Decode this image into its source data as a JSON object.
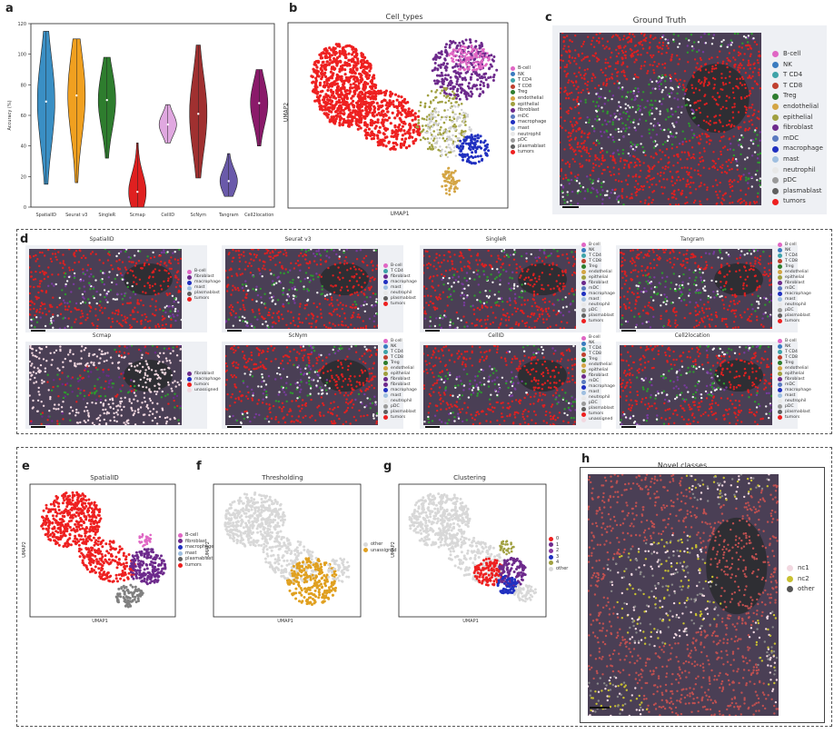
{
  "panels": {
    "a": "a",
    "b": "b",
    "c": "c",
    "d": "d",
    "e": "e",
    "f": "f",
    "g": "g",
    "h": "h"
  },
  "colors": {
    "B-cell": "#e066c4",
    "NK": "#3a7bbf",
    "T CD4": "#3fa3a8",
    "T CD8": "#c0402f",
    "Treg": "#2e7d2e",
    "endothelial": "#d4a544",
    "epithelial": "#a0a040",
    "fibroblast": "#6d2a8c",
    "mDC": "#5a7ac0",
    "macrophage": "#2030c0",
    "mast": "#9fbfe0",
    "neutrophil": "#e8e8e8",
    "pDC": "#9a9a9a",
    "plasmablast": "#606060",
    "tumors": "#ee2020",
    "unassigned": "#f2d8e0"
  },
  "chart_data": {
    "type": "violin",
    "ylabel": "Accuracy (%)",
    "ylim": [
      0,
      120
    ],
    "yticks": [
      "0",
      "20",
      "40",
      "60",
      "80",
      "100",
      "120"
    ],
    "categories": [
      "SpatialID",
      "Seurat v3",
      "SingleR",
      "Scmap",
      "CellID",
      "ScNym",
      "Tangram",
      "Cell2location"
    ],
    "medians": [
      69,
      73,
      70,
      10,
      54,
      61,
      17,
      68
    ],
    "ranges": [
      [
        15,
        115
      ],
      [
        16,
        110
      ],
      [
        32,
        98
      ],
      [
        0,
        42
      ],
      [
        42,
        67
      ],
      [
        19,
        106
      ],
      [
        7,
        35
      ],
      [
        40,
        90
      ]
    ],
    "colors": [
      "#3a8fc4",
      "#f0a020",
      "#2e7d2e",
      "#e02020",
      "#e0a8e0",
      "#a03030",
      "#6a5aaa",
      "#8a1a6a"
    ]
  },
  "b": {
    "title": "Cell_types",
    "xlabel": "UMAP1",
    "ylabel": "UMAP2",
    "legend": [
      "B-cell",
      "NK",
      "T CD4",
      "T CD8",
      "Treg",
      "endothelial",
      "epithelial",
      "fibroblast",
      "mDC",
      "macrophage",
      "mast",
      "neutrophil",
      "pDC",
      "plasmablast",
      "tumors"
    ]
  },
  "c": {
    "title": "Ground Truth",
    "legend": [
      "B-cell",
      "NK",
      "T CD4",
      "T CD8",
      "Treg",
      "endothelial",
      "epithelial",
      "fibroblast",
      "mDC",
      "macrophage",
      "mast",
      "neutrophil",
      "pDC",
      "plasmablast",
      "tumors"
    ]
  },
  "d": {
    "panels": [
      {
        "title": "SpatialID",
        "legend": [
          "B-cell",
          "fibroblast",
          "macrophage",
          "mast",
          "plasmablast",
          "tumors"
        ]
      },
      {
        "title": "Seurat v3",
        "legend": [
          "B-cell",
          "T CD4",
          "fibroblast",
          "macrophage",
          "mast",
          "neutrophil",
          "plasmablast",
          "tumors"
        ]
      },
      {
        "title": "SingleR",
        "legend": [
          "B-cell",
          "NK",
          "T CD4",
          "T CD8",
          "Treg",
          "endothelial",
          "epithelial",
          "fibroblast",
          "mDC",
          "macrophage",
          "mast",
          "neutrophil",
          "pDC",
          "plasmablast",
          "tumors"
        ]
      },
      {
        "title": "Tangram",
        "legend": [
          "B-cell",
          "NK",
          "T CD4",
          "T CD8",
          "Treg",
          "endothelial",
          "epithelial",
          "fibroblast",
          "mDC",
          "macrophage",
          "mast",
          "neutrophil",
          "pDC",
          "plasmablast",
          "tumors"
        ]
      },
      {
        "title": "Scmap",
        "legend": [
          "fibroblast",
          "macrophage",
          "tumors",
          "unassigned"
        ]
      },
      {
        "title": "ScNym",
        "legend": [
          "B-cell",
          "NK",
          "T CD4",
          "T CD8",
          "Treg",
          "endothelial",
          "epithelial",
          "fibroblast",
          "fibroblast",
          "macrophage",
          "mast",
          "neutrophil",
          "pDC",
          "plasmablast",
          "tumors"
        ]
      },
      {
        "title": "CellID",
        "legend": [
          "B-cell",
          "NK",
          "T CD4",
          "T CD8",
          "Treg",
          "endothelial",
          "epithelial",
          "fibroblast",
          "mDC",
          "macrophage",
          "mast",
          "neutrophil",
          "pDC",
          "plasmablast",
          "tumors",
          "unassigned"
        ]
      },
      {
        "title": "Cell2location",
        "legend": [
          "B-cell",
          "NK",
          "T CD4",
          "T CD8",
          "Treg",
          "endothelial",
          "epithelial",
          "fibroblast",
          "mDC",
          "macrophage",
          "mast",
          "neutrophil",
          "pDC",
          "plasmablast",
          "tumors"
        ]
      }
    ]
  },
  "e": {
    "title": "SpatialID",
    "xlabel": "UMAP1",
    "ylabel": "UMAP2",
    "legend": [
      "B-cell",
      "fibroblast",
      "macrophage",
      "mast",
      "plasmablast",
      "tumors"
    ]
  },
  "f": {
    "title": "Thresholding",
    "xlabel": "UMAP1",
    "ylabel": "UMAP2",
    "legend": [
      "other",
      "unassigned"
    ],
    "legend_colors": [
      "#d8d8d8",
      "#e0a020"
    ]
  },
  "g": {
    "title": "Clustering",
    "xlabel": "UMAP1",
    "ylabel": "UMAP2",
    "legend": [
      "0",
      "1",
      "2",
      "3",
      "4",
      "other"
    ],
    "legend_colors": [
      "#ee2020",
      "#6d2a8c",
      "#8a3aa0",
      "#2030c0",
      "#a0a040",
      "#d8d8d8"
    ]
  },
  "h": {
    "title": "Novel classes",
    "legend": [
      "nc1",
      "nc2",
      "other"
    ],
    "legend_colors": [
      "#f2d8e0",
      "#c8c030",
      "#555555"
    ]
  }
}
